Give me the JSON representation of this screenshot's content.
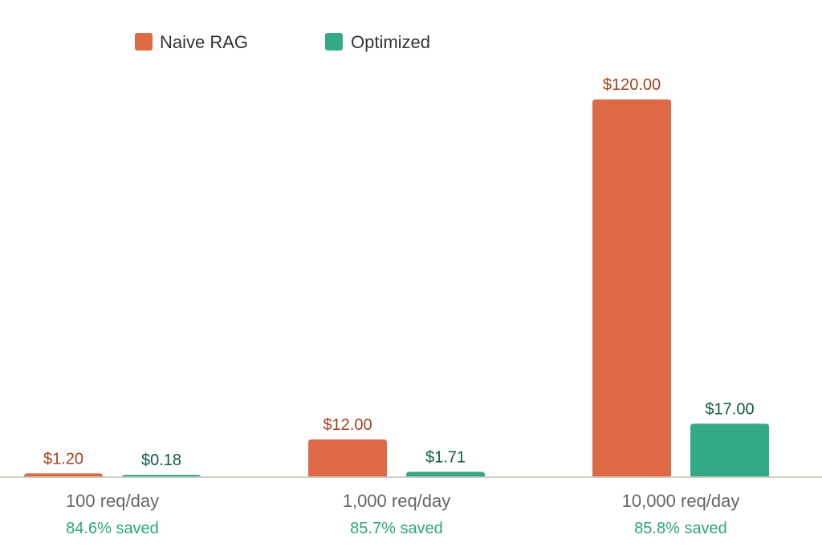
{
  "colors": {
    "naive": "#DD6A45",
    "optimized": "#34A987",
    "naive_label": "#A5401E",
    "optimized_label": "#0F5B45",
    "saved": "#2FA57E",
    "axis": "#CFCDC2"
  },
  "chart_data": {
    "type": "bar",
    "title": "",
    "xlabel": "",
    "ylabel": "",
    "ylim": [
      0,
      120
    ],
    "grid": false,
    "legend_position": "top-left",
    "categories": [
      "100 req/day",
      "1,000 req/day",
      "10,000 req/day"
    ],
    "series": [
      {
        "name": "Naive RAG",
        "values": [
          1.2,
          12.0,
          120.0
        ],
        "labels": [
          "$1.20",
          "$12.00",
          "$120.00"
        ]
      },
      {
        "name": "Optimized",
        "values": [
          0.18,
          1.71,
          17.0
        ],
        "labels": [
          "$0.18",
          "$1.71",
          "$17.00"
        ]
      }
    ],
    "annotations": [
      "84.6% saved",
      "85.7% saved",
      "85.8% saved"
    ]
  }
}
